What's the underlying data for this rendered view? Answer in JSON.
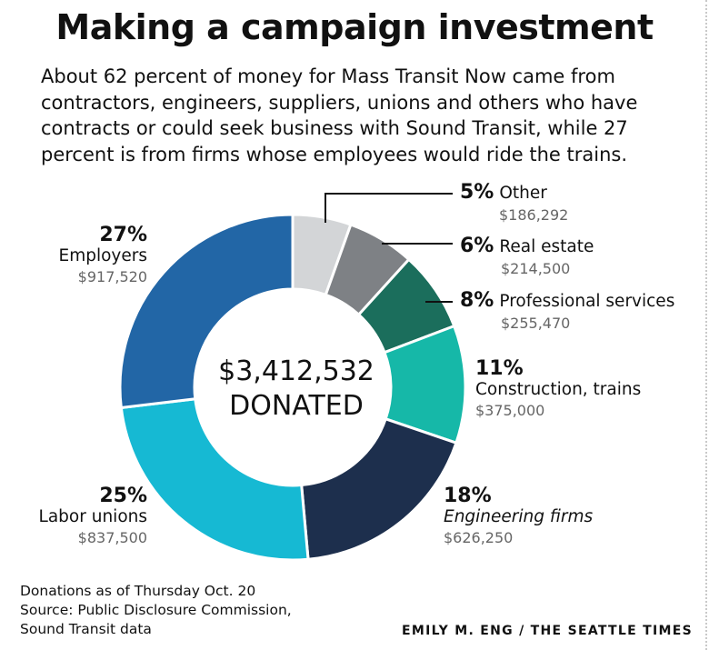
{
  "title": "Making a campaign investment",
  "subtitle": "About 62 percent of money for Mass Transit Now came from contractors, engineers, suppliers, unions and others who have contracts or could seek business with Sound Transit, while 27 percent is from firms whose employees would ride the trains.",
  "center": {
    "amount": "$3,412,532",
    "label": "DONATED"
  },
  "footnote": {
    "line1": "Donations as of Thursday Oct. 20",
    "line2": "Source: Public Disclosure Commission,",
    "line3": "Sound Transit data"
  },
  "credit": "EMILY M. ENG / THE SEATTLE TIMES",
  "chart_data": {
    "type": "pie",
    "title": "Making a campaign investment",
    "total": 3412532,
    "slices": [
      {
        "name": "Other",
        "pct_label": "5%",
        "amount_label": "$186,292",
        "value": 186292,
        "color": "#d3d5d7"
      },
      {
        "name": "Real estate",
        "pct_label": "6%",
        "amount_label": "$214,500",
        "value": 214500,
        "color": "#7e8185"
      },
      {
        "name": "Professional services",
        "pct_label": "8%",
        "amount_label": "$255,470",
        "value": 255470,
        "color": "#1b6e5c"
      },
      {
        "name": "Construction, trains",
        "pct_label": "11%",
        "amount_label": "$375,000",
        "value": 375000,
        "color": "#16b8a8"
      },
      {
        "name": "Engineering firms",
        "pct_label": "18%",
        "amount_label": "$626,250",
        "value": 626250,
        "color": "#1d2f4d"
      },
      {
        "name": "Labor unions",
        "pct_label": "25%",
        "amount_label": "$837,500",
        "value": 837500,
        "color": "#16b9d3"
      },
      {
        "name": "Employers",
        "pct_label": "27%",
        "amount_label": "$917,520",
        "value": 917520,
        "color": "#2266a6"
      }
    ]
  }
}
